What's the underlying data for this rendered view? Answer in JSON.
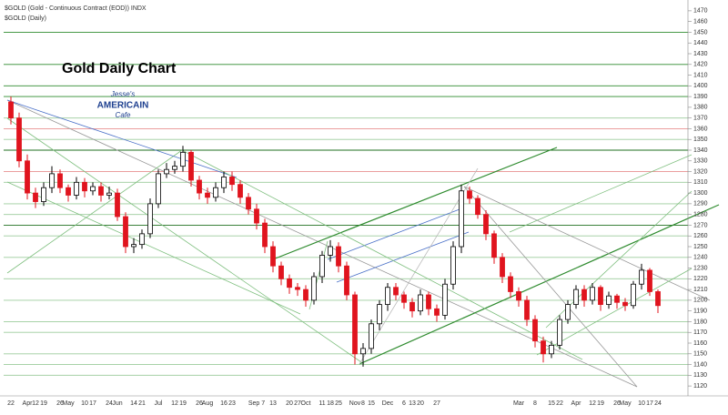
{
  "chart_data": {
    "type": "candlestick",
    "symbol_title": "$GOLD (Gold - Continuous Contract (EOD)) INDX",
    "symbol_subtitle": "$GOLD (Daily)",
    "title": "Gold Daily Chart",
    "logo": {
      "top": "Jesse's",
      "middle": "AMERICAIN",
      "bottom": "Cafe"
    },
    "categories": [
      "22",
      null,
      "Apr",
      "12",
      "19",
      null,
      "26",
      "May",
      null,
      "10",
      "17",
      null,
      "24",
      "Jun",
      null,
      "14",
      "21",
      null,
      "Jul",
      null,
      "12",
      "19",
      null,
      "26",
      "Aug",
      null,
      "16",
      "23",
      null,
      null,
      "Sep 7",
      null,
      "13",
      null,
      "20",
      "27",
      "Oct",
      null,
      "11",
      "18",
      "25",
      null,
      "Nov",
      "8",
      "15",
      null,
      "Dec",
      null,
      "6",
      "13",
      "20",
      null,
      "27",
      null,
      null,
      null,
      null,
      null,
      null,
      null,
      null,
      null,
      "Mar",
      null,
      "8",
      null,
      "15",
      "22",
      null,
      "Apr",
      null,
      "12",
      "19",
      null,
      "26",
      "May",
      null,
      "10",
      "17",
      "24"
    ],
    "open": [
      1385,
      1370,
      1330,
      1300,
      1292,
      1305,
      1318,
      1305,
      1298,
      1310,
      1302,
      1306,
      1298,
      1300,
      1278,
      1250,
      1252,
      1262,
      1290,
      1318,
      1322,
      1325,
      1338,
      1312,
      1300,
      1296,
      1305,
      1315,
      1308,
      1296,
      1285,
      1272,
      1250,
      1232,
      1220,
      1212,
      1210,
      1200,
      1222,
      1242,
      1250,
      1232,
      1205,
      1150,
      1155,
      1178,
      1196,
      1212,
      1205,
      1198,
      1190,
      1205,
      1192,
      1186,
      1215,
      1250,
      1302,
      1295,
      1280,
      1262,
      1240,
      1222,
      1208,
      1200,
      1182,
      1162,
      1150,
      1158,
      1182,
      1196,
      1210,
      1200,
      1212,
      1196,
      1204,
      1198,
      1195,
      1215,
      1228,
      1208
    ],
    "high": [
      1390,
      1375,
      1336,
      1305,
      1310,
      1325,
      1322,
      1308,
      1315,
      1314,
      1310,
      1310,
      1306,
      1304,
      1282,
      1258,
      1266,
      1295,
      1322,
      1328,
      1330,
      1344,
      1340,
      1316,
      1305,
      1310,
      1320,
      1320,
      1312,
      1300,
      1290,
      1276,
      1255,
      1236,
      1224,
      1216,
      1214,
      1226,
      1246,
      1256,
      1254,
      1236,
      1208,
      1160,
      1182,
      1200,
      1216,
      1216,
      1208,
      1202,
      1210,
      1208,
      1196,
      1220,
      1255,
      1308,
      1306,
      1298,
      1284,
      1265,
      1244,
      1226,
      1212,
      1204,
      1186,
      1166,
      1162,
      1186,
      1200,
      1214,
      1214,
      1216,
      1214,
      1208,
      1206,
      1202,
      1218,
      1234,
      1230,
      1210
    ],
    "low": [
      1364,
      1324,
      1294,
      1286,
      1288,
      1300,
      1300,
      1292,
      1294,
      1296,
      1298,
      1292,
      1294,
      1274,
      1244,
      1244,
      1248,
      1258,
      1286,
      1314,
      1318,
      1320,
      1306,
      1294,
      1290,
      1292,
      1300,
      1302,
      1290,
      1280,
      1266,
      1244,
      1226,
      1214,
      1206,
      1204,
      1194,
      1196,
      1216,
      1236,
      1226,
      1200,
      1140,
      1138,
      1150,
      1172,
      1190,
      1200,
      1192,
      1184,
      1186,
      1186,
      1180,
      1182,
      1210,
      1244,
      1290,
      1276,
      1256,
      1234,
      1216,
      1202,
      1194,
      1176,
      1156,
      1142,
      1146,
      1154,
      1178,
      1192,
      1194,
      1196,
      1190,
      1192,
      1192,
      1190,
      1192,
      1210,
      1204,
      1188
    ],
    "close": [
      1370,
      1330,
      1300,
      1292,
      1305,
      1318,
      1305,
      1298,
      1310,
      1302,
      1306,
      1298,
      1300,
      1278,
      1250,
      1252,
      1262,
      1290,
      1318,
      1322,
      1325,
      1338,
      1312,
      1300,
      1296,
      1305,
      1315,
      1308,
      1296,
      1285,
      1272,
      1250,
      1232,
      1220,
      1212,
      1210,
      1200,
      1222,
      1242,
      1250,
      1232,
      1205,
      1150,
      1155,
      1178,
      1196,
      1212,
      1205,
      1198,
      1190,
      1205,
      1192,
      1186,
      1215,
      1250,
      1302,
      1295,
      1280,
      1262,
      1240,
      1222,
      1208,
      1200,
      1182,
      1162,
      1150,
      1158,
      1182,
      1196,
      1210,
      1200,
      1212,
      1196,
      1204,
      1198,
      1195,
      1215,
      1228,
      1208,
      1195
    ],
    "up_color": "#000000",
    "down_color": "#e0141e",
    "ylim": [
      1115,
      1475
    ],
    "yticks": [
      1120,
      1130,
      1140,
      1150,
      1160,
      1170,
      1180,
      1190,
      1200,
      1210,
      1220,
      1230,
      1240,
      1250,
      1260,
      1270,
      1280,
      1290,
      1300,
      1310,
      1320,
      1330,
      1340,
      1350,
      1360,
      1370,
      1380,
      1390,
      1400,
      1410,
      1420,
      1430,
      1440,
      1450,
      1460,
      1470
    ],
    "horizontal_lines": [
      {
        "value": 1450,
        "color": "#2e8b2e"
      },
      {
        "value": 1420,
        "color": "#2e8b2e"
      },
      {
        "value": 1400,
        "color": "#2e8b2e"
      },
      {
        "value": 1390,
        "color": "#2e8b2e"
      },
      {
        "value": 1370,
        "color": "#9ccc9c"
      },
      {
        "value": 1360,
        "color": "#e89090"
      },
      {
        "value": 1350,
        "color": "#9ccc9c"
      },
      {
        "value": 1340,
        "color": "#1f6f1f"
      },
      {
        "value": 1320,
        "color": "#e89090"
      },
      {
        "value": 1310,
        "color": "#9ccc9c"
      },
      {
        "value": 1290,
        "color": "#9ccc9c"
      },
      {
        "value": 1280,
        "color": "#9ccc9c"
      },
      {
        "value": 1270,
        "color": "#1f6f1f"
      },
      {
        "value": 1260,
        "color": "#9ccc9c"
      },
      {
        "value": 1240,
        "color": "#9ccc9c"
      },
      {
        "value": 1220,
        "color": "#9ccc9c"
      },
      {
        "value": 1200,
        "color": "#9ccc9c"
      },
      {
        "value": 1180,
        "color": "#9ccc9c"
      },
      {
        "value": 1170,
        "color": "#9ccc9c"
      },
      {
        "value": 1150,
        "color": "#9ccc9c"
      },
      {
        "value": 1140,
        "color": "#9ccc9c"
      },
      {
        "value": 1130,
        "color": "#9ccc9c"
      }
    ]
  }
}
